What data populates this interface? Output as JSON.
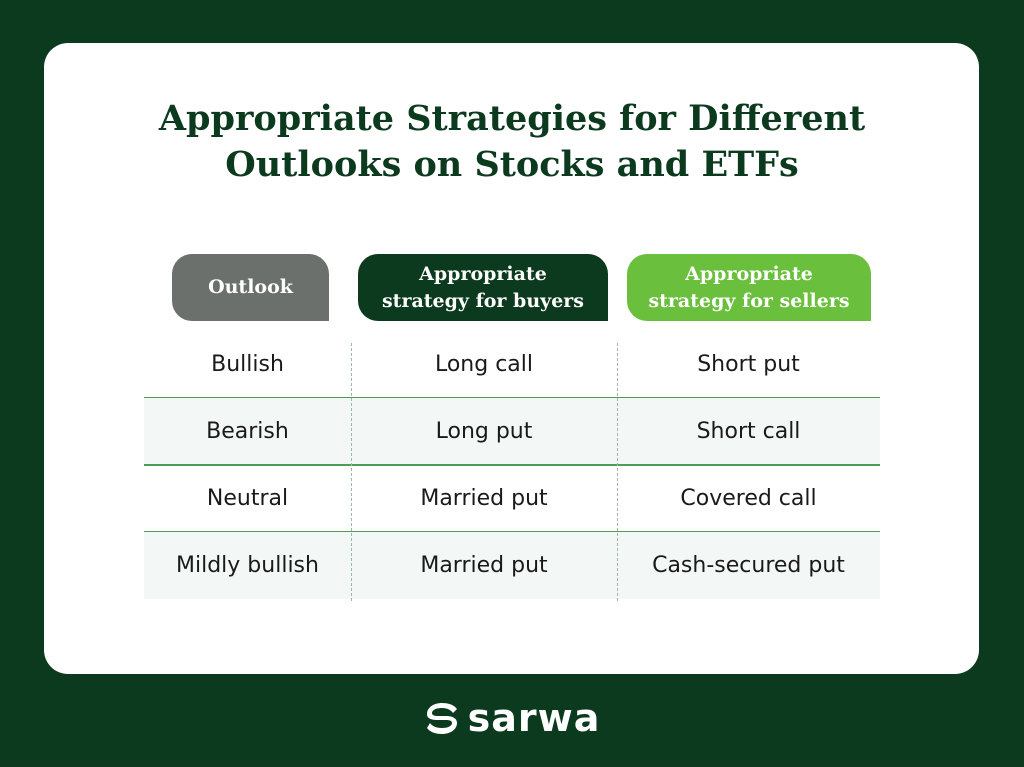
{
  "title": {
    "line1": "Appropriate Strategies for Different",
    "line2": "Outlooks on Stocks and ETFs"
  },
  "headers": {
    "outlook": "Outlook",
    "buyers_line1": "Appropriate",
    "buyers_line2": "strategy for buyers",
    "sellers_line1": "Appropriate",
    "sellers_line2": "strategy for sellers"
  },
  "rows": [
    {
      "outlook": "Bullish",
      "buyers": "Long call",
      "sellers": "Short put"
    },
    {
      "outlook": "Bearish",
      "buyers": "Long put",
      "sellers": "Short call"
    },
    {
      "outlook": "Neutral",
      "buyers": "Married put",
      "sellers": "Covered call"
    },
    {
      "outlook": "Mildly bullish",
      "buyers": "Married put",
      "sellers": "Cash-secured put"
    }
  ],
  "logo": {
    "text": "sarwa",
    "icon": "sarwa-logo-icon"
  },
  "colors": {
    "background": "#0c3a1e",
    "outlook_header": "#6c706d",
    "buyers_header": "#0c3a1e",
    "sellers_header": "#6abf3c",
    "row_separator": "#4f9a55"
  }
}
